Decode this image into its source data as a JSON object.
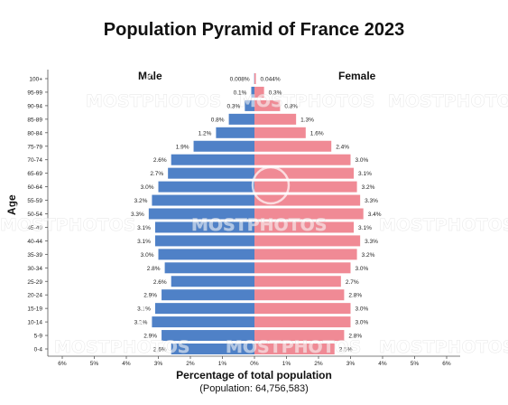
{
  "title": "Population Pyramid of France 2023",
  "colors": {
    "male": "#4f81c7",
    "female": "#f08a95",
    "axis": "#555555",
    "text": "#222222"
  },
  "chart_data": {
    "type": "bar",
    "orientation": "horizontal-pyramid",
    "title": "Population Pyramid of France 2023",
    "xlabel": "Percentage of total population",
    "ylabel": "Age",
    "note": "(Population: 64,756,583)",
    "xlim": [
      -6,
      6
    ],
    "xticks": [
      "6%",
      "5%",
      "4%",
      "3%",
      "2%",
      "1%",
      "0%",
      "1%",
      "2%",
      "3%",
      "4%",
      "5%",
      "6%"
    ],
    "grid": false,
    "categories": [
      "100+",
      "95-99",
      "90-94",
      "85-89",
      "80-84",
      "75-79",
      "70-74",
      "65-69",
      "60-64",
      "55-59",
      "50-54",
      "45-49",
      "40-44",
      "35-39",
      "30-34",
      "25-29",
      "20-24",
      "15-19",
      "10-14",
      "5-9",
      "0-4"
    ],
    "series": [
      {
        "name": "Male",
        "values": [
          0.008,
          0.1,
          0.3,
          0.8,
          1.2,
          1.9,
          2.6,
          2.7,
          3.0,
          3.2,
          3.3,
          3.1,
          3.1,
          3.0,
          2.8,
          2.6,
          2.9,
          3.1,
          3.2,
          2.9,
          2.6
        ],
        "labels": [
          "0.008%",
          "0.1%",
          "0.3%",
          "0.8%",
          "1.2%",
          "1.9%",
          "2.6%",
          "2.7%",
          "3.0%",
          "3.2%",
          "3.3%",
          "3.1%",
          "3.1%",
          "3.0%",
          "2.8%",
          "2.6%",
          "2.9%",
          "3.1%",
          "3.2%",
          "2.9%",
          "2.6%"
        ]
      },
      {
        "name": "Female",
        "values": [
          0.044,
          0.3,
          0.8,
          1.3,
          1.6,
          2.4,
          3.0,
          3.1,
          3.2,
          3.3,
          3.4,
          3.1,
          3.3,
          3.2,
          3.0,
          2.7,
          2.8,
          3.0,
          3.0,
          2.8,
          2.5
        ],
        "labels": [
          "0.044%",
          "0.3%",
          "0.8%",
          "1.3%",
          "1.6%",
          "2.4%",
          "3.0%",
          "3.1%",
          "3.2%",
          "3.3%",
          "3.4%",
          "3.1%",
          "3.3%",
          "3.2%",
          "3.0%",
          "2.7%",
          "2.8%",
          "3.0%",
          "3.0%",
          "2.8%",
          "2.5%"
        ]
      }
    ]
  },
  "watermark": {
    "text": "MOSTPHOTOS"
  }
}
